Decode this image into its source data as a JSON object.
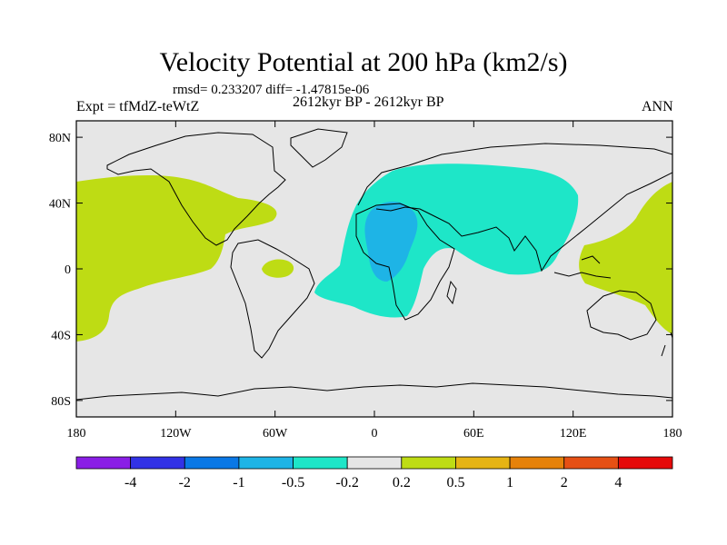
{
  "figure": {
    "title": "Velocity Potential at 200 hPa (km2/s)",
    "stats": "rmsd= 0.233207 diff= -1.47815e-06",
    "experiment": "Expt = tfMdZ-teWtZ",
    "period": "2612kyr BP - 2612kyr BP",
    "season": "ANN"
  },
  "chart_data": {
    "type": "heatmap",
    "projection": "cylindrical-equidistant",
    "title": "Velocity Potential at 200 hPa (km2/s)",
    "units": "km2/s",
    "lon_range": [
      -180,
      180
    ],
    "lat_range": [
      -90,
      90
    ],
    "x_ticks": [
      "180",
      "120W",
      "60W",
      "0",
      "60E",
      "120E",
      "180"
    ],
    "y_ticks": [
      "80N",
      "40N",
      "0",
      "40S",
      "80S"
    ],
    "colorbar": {
      "levels": [
        "-4",
        "-2",
        "-1",
        "-0.5",
        "-0.2",
        "0.2",
        "0.5",
        "1",
        "2",
        "4"
      ],
      "colors": [
        "#8a1ee6",
        "#3232e6",
        "#0a78e6",
        "#1eb4e6",
        "#1ee6c8",
        "#e6e6e6",
        "#bedc14",
        "#e6b414",
        "#e6820a",
        "#e65014",
        "#e60a0a"
      ]
    },
    "regions": [
      {
        "name": "pacific-east-positive",
        "value_range": "0.2 to 0.5"
      },
      {
        "name": "west-pacific-positive",
        "value_range": "0.2 to 0.5"
      },
      {
        "name": "atlantic-small-positive",
        "value_range": "0.2 to 0.5"
      },
      {
        "name": "africa-eurasia-negative",
        "value_range": "-0.5 to -0.2"
      },
      {
        "name": "west-africa-negative",
        "value_range": "-1 to -0.5"
      }
    ]
  }
}
